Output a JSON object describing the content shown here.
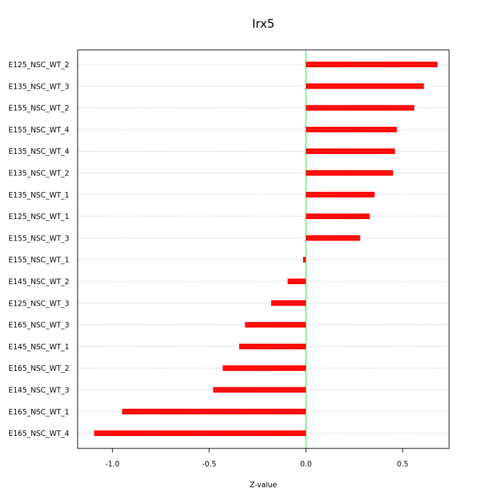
{
  "chart_data": {
    "type": "bar",
    "orientation": "horizontal",
    "title": "Irx5",
    "xlabel": "Z-value",
    "ylabel": "",
    "xlim": [
      -1.18,
      0.74
    ],
    "xticks": [
      -1.0,
      -0.5,
      0.0,
      0.5
    ],
    "xtick_labels": [
      "-1.0",
      "-0.5",
      "0.0",
      "0.5"
    ],
    "grid": true,
    "reference_line": 0,
    "colors": {
      "bar": "#ff0000",
      "zero_line": "#00ff00",
      "grid": "#c8c8c8"
    },
    "categories": [
      "E125_NSC_WT_2",
      "E135_NSC_WT_3",
      "E155_NSC_WT_2",
      "E155_NSC_WT_4",
      "E135_NSC_WT_4",
      "E135_NSC_WT_2",
      "E135_NSC_WT_1",
      "E125_NSC_WT_1",
      "E155_NSC_WT_3",
      "E155_NSC_WT_1",
      "E145_NSC_WT_2",
      "E125_NSC_WT_3",
      "E165_NSC_WT_3",
      "E145_NSC_WT_1",
      "E165_NSC_WT_2",
      "E145_NSC_WT_3",
      "E165_NSC_WT_1",
      "E165_NSC_WT_4"
    ],
    "values": [
      0.68,
      0.61,
      0.56,
      0.47,
      0.46,
      0.45,
      0.355,
      0.33,
      0.28,
      -0.015,
      -0.095,
      -0.18,
      -0.315,
      -0.345,
      -0.43,
      -0.48,
      -0.95,
      -1.095
    ]
  }
}
